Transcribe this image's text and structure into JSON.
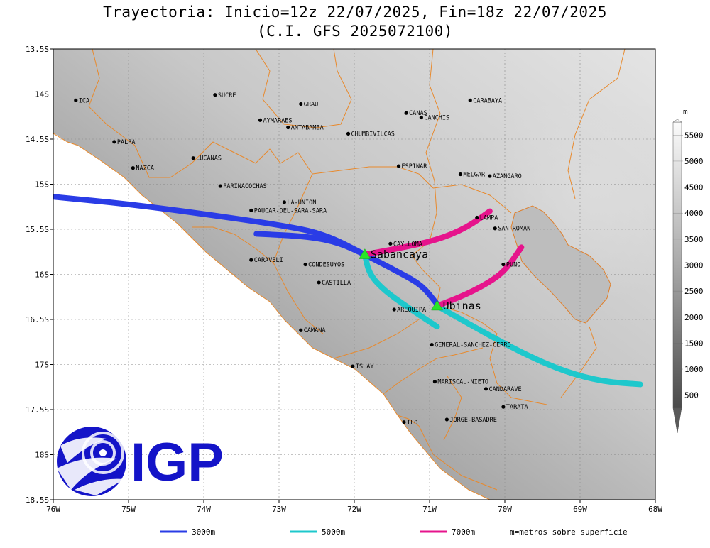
{
  "title": {
    "line1": "Trayectoria: Inicio=12z 22/07/2025, Fin=18z 22/07/2025",
    "line2": "(C.I. GFS 2025072100)"
  },
  "map": {
    "lon_range": [
      -76,
      -68
    ],
    "lat_range": [
      -18.5,
      -13.5
    ],
    "lat_ticks": [
      {
        "lat": -13.5,
        "label": "13.5S"
      },
      {
        "lat": -14,
        "label": "14S"
      },
      {
        "lat": -14.5,
        "label": "14.5S"
      },
      {
        "lat": -15,
        "label": "15S"
      },
      {
        "lat": -15.5,
        "label": "15.5S"
      },
      {
        "lat": -16,
        "label": "16S"
      },
      {
        "lat": -16.5,
        "label": "16.5S"
      },
      {
        "lat": -17,
        "label": "17S"
      },
      {
        "lat": -17.5,
        "label": "17.5S"
      },
      {
        "lat": -18,
        "label": "18S"
      },
      {
        "lat": -18.5,
        "label": "18.5S"
      }
    ],
    "lon_ticks": [
      {
        "lon": -76,
        "label": "76W"
      },
      {
        "lon": -75,
        "label": "75W"
      },
      {
        "lon": -74,
        "label": "74W"
      },
      {
        "lon": -73,
        "label": "73W"
      },
      {
        "lon": -72,
        "label": "72W"
      },
      {
        "lon": -71,
        "label": "71W"
      },
      {
        "lon": -70,
        "label": "70W"
      },
      {
        "lon": -69,
        "label": "69W"
      },
      {
        "lon": -68,
        "label": "68W"
      }
    ],
    "grid": true,
    "cities": [
      {
        "name": "ICA",
        "lon": -75.7,
        "lat": -14.07
      },
      {
        "name": "SUCRE",
        "lon": -73.85,
        "lat": -14.01
      },
      {
        "name": "GRAU",
        "lon": -72.71,
        "lat": -14.11
      },
      {
        "name": "CARABAYA",
        "lon": -70.46,
        "lat": -14.07
      },
      {
        "name": "CANAS",
        "lon": -71.31,
        "lat": -14.21
      },
      {
        "name": "CANCHIS",
        "lon": -71.11,
        "lat": -14.26
      },
      {
        "name": "AYMARAES",
        "lon": -73.25,
        "lat": -14.29
      },
      {
        "name": "ANTABAMBA",
        "lon": -72.88,
        "lat": -14.37
      },
      {
        "name": "CHUMBIVILCAS",
        "lon": -72.08,
        "lat": -14.44
      },
      {
        "name": "PALPA",
        "lon": -75.19,
        "lat": -14.53
      },
      {
        "name": "LUCANAS",
        "lon": -74.14,
        "lat": -14.71
      },
      {
        "name": "NAZCA",
        "lon": -74.94,
        "lat": -14.82
      },
      {
        "name": "ESPINAR",
        "lon": -71.41,
        "lat": -14.8
      },
      {
        "name": "MELGAR",
        "lon": -70.59,
        "lat": -14.89
      },
      {
        "name": "AZANGARO",
        "lon": -70.2,
        "lat": -14.91
      },
      {
        "name": "PARINACOCHAS",
        "lon": -73.78,
        "lat": -15.02
      },
      {
        "name": "LA-UNION",
        "lon": -72.93,
        "lat": -15.2
      },
      {
        "name": "PAUCAR-DEL-SARA-SARA",
        "lon": -73.37,
        "lat": -15.29
      },
      {
        "name": "LAMPA",
        "lon": -70.37,
        "lat": -15.37
      },
      {
        "name": "SAN-ROMAN",
        "lon": -70.13,
        "lat": -15.49
      },
      {
        "name": "CAYLLOMA",
        "lon": -71.52,
        "lat": -15.66
      },
      {
        "name": "CARAVELI",
        "lon": -73.37,
        "lat": -15.84
      },
      {
        "name": "CONDESUYOS",
        "lon": -72.65,
        "lat": -15.89
      },
      {
        "name": "PUNO",
        "lon": -70.02,
        "lat": -15.89
      },
      {
        "name": "CASTILLA",
        "lon": -72.47,
        "lat": -16.09
      },
      {
        "name": "AREQUIPA",
        "lon": -71.47,
        "lat": -16.39
      },
      {
        "name": "GENERAL-SANCHEZ-CERRO",
        "lon": -70.97,
        "lat": -16.78
      },
      {
        "name": "CAMANA",
        "lon": -72.71,
        "lat": -16.62
      },
      {
        "name": "ISLAY",
        "lon": -72.02,
        "lat": -17.02
      },
      {
        "name": "MARISCAL-NIETO",
        "lon": -70.93,
        "lat": -17.19
      },
      {
        "name": "CANDARAVE",
        "lon": -70.25,
        "lat": -17.27
      },
      {
        "name": "TARATA",
        "lon": -70.02,
        "lat": -17.47
      },
      {
        "name": "ILO",
        "lon": -71.34,
        "lat": -17.64
      },
      {
        "name": "JORGE-BASADRE",
        "lon": -70.77,
        "lat": -17.61
      }
    ],
    "volcanoes": [
      {
        "name": "Sabancaya",
        "lon": -71.86,
        "lat": -15.78
      },
      {
        "name": "Ubinas",
        "lon": -70.9,
        "lat": -16.35
      }
    ]
  },
  "trajectories": [
    {
      "name": "3000m",
      "color": "#2a3ce6",
      "points": [
        [
          -76.0,
          -15.14
        ],
        [
          -75.0,
          -15.22
        ],
        [
          -74.0,
          -15.33
        ],
        [
          -73.0,
          -15.45
        ],
        [
          -72.4,
          -15.55
        ],
        [
          -71.86,
          -15.78
        ],
        [
          -71.4,
          -15.98
        ],
        [
          -71.1,
          -16.12
        ],
        [
          -70.9,
          -16.33
        ]
      ]
    },
    {
      "name": "3000m-b",
      "color": "#2a3ce6",
      "points": [
        [
          -73.3,
          -15.55
        ],
        [
          -72.6,
          -15.58
        ],
        [
          -72.2,
          -15.65
        ],
        [
          -71.86,
          -15.78
        ]
      ]
    },
    {
      "name": "5000m",
      "color": "#1ec8cc",
      "points": [
        [
          -71.86,
          -15.78
        ],
        [
          -71.8,
          -16.0
        ],
        [
          -71.6,
          -16.18
        ],
        [
          -71.3,
          -16.36
        ],
        [
          -70.9,
          -16.58
        ]
      ]
    },
    {
      "name": "5000m-b",
      "color": "#1ec8cc",
      "points": [
        [
          -70.9,
          -16.35
        ],
        [
          -70.2,
          -16.68
        ],
        [
          -69.7,
          -16.9
        ],
        [
          -69.2,
          -17.08
        ],
        [
          -68.7,
          -17.19
        ],
        [
          -68.2,
          -17.22
        ]
      ]
    },
    {
      "name": "7000m",
      "color": "#e6148c",
      "points": [
        [
          -71.86,
          -15.78
        ],
        [
          -71.4,
          -15.71
        ],
        [
          -70.9,
          -15.62
        ],
        [
          -70.5,
          -15.48
        ],
        [
          -70.2,
          -15.3
        ]
      ]
    },
    {
      "name": "7000m-b",
      "color": "#e6148c",
      "points": [
        [
          -70.9,
          -16.35
        ],
        [
          -70.5,
          -16.22
        ],
        [
          -70.15,
          -16.06
        ],
        [
          -69.97,
          -15.93
        ],
        [
          -69.78,
          -15.7
        ]
      ]
    }
  ],
  "colorbar": {
    "unit": "m",
    "labels": [
      "500",
      "1000",
      "1500",
      "2000",
      "2500",
      "3000",
      "3500",
      "4000",
      "4500",
      "5000",
      "5500"
    ]
  },
  "legend": [
    {
      "label": "3000m",
      "color": "#2a3ce6"
    },
    {
      "label": "5000m",
      "color": "#1ec8cc"
    },
    {
      "label": "7000m",
      "color": "#e6148c"
    }
  ],
  "legend_note": "m=metros sobre superficie",
  "logo": {
    "text": "IGP"
  }
}
